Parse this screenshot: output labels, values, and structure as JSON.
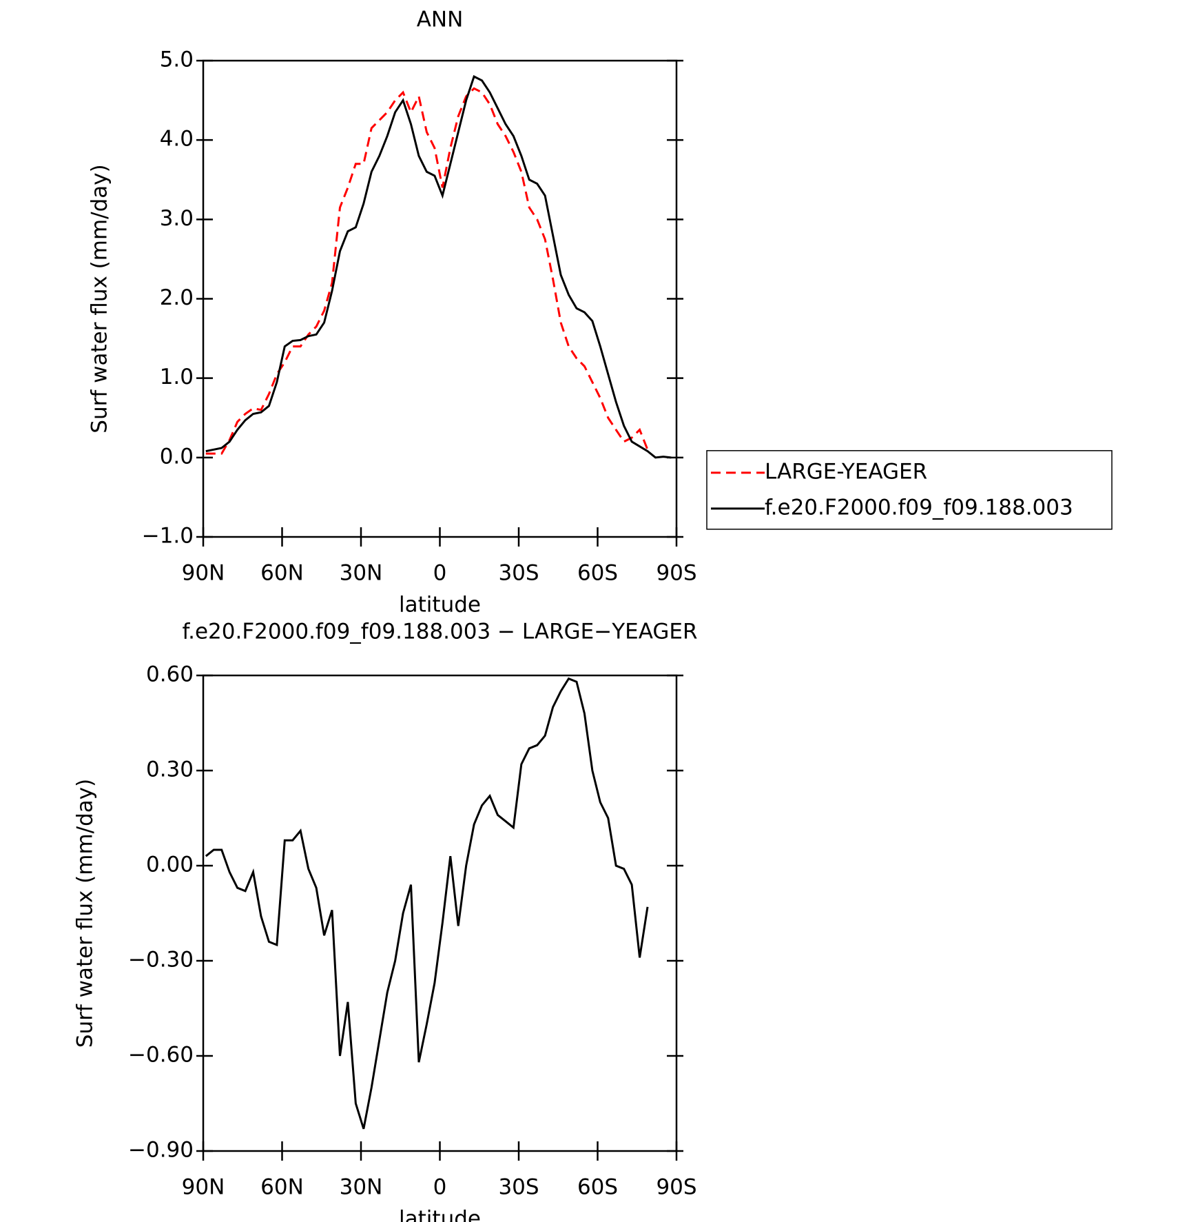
{
  "chart_data": [
    {
      "type": "line",
      "title": "ANN",
      "xlabel": "latitude",
      "ylabel": "Surf water flux (mm/day)",
      "x": [
        89,
        86,
        83,
        80,
        77,
        74,
        71,
        68,
        65,
        62,
        59,
        56,
        53,
        50,
        47,
        44,
        41,
        38,
        35,
        32,
        29,
        26,
        23,
        20,
        17,
        14,
        11,
        8,
        5,
        2,
        -1,
        -4,
        -7,
        -10,
        -13,
        -16,
        -19,
        -22,
        -25,
        -28,
        -31,
        -34,
        -37,
        -40,
        -43,
        -46,
        -49,
        -52,
        -55,
        -58,
        -61,
        -64,
        -67,
        -70,
        -73,
        -76,
        -79,
        -82,
        -85,
        -88
      ],
      "series": [
        {
          "name": "LARGE-YEAGER",
          "color": "#ff0000",
          "dash": "dashed",
          "values": [
            0.05,
            0.05,
            0.05,
            0.22,
            0.45,
            0.55,
            0.62,
            0.6,
            0.8,
            1.05,
            1.2,
            1.4,
            1.4,
            1.55,
            1.65,
            1.85,
            2.2,
            3.15,
            3.4,
            3.7,
            3.7,
            4.15,
            4.25,
            4.35,
            4.5,
            4.6,
            4.35,
            4.55,
            4.1,
            3.9,
            3.4,
            3.9,
            4.3,
            4.55,
            4.65,
            4.6,
            4.45,
            4.2,
            4.05,
            3.85,
            3.6,
            3.15,
            3.0,
            2.75,
            2.25,
            1.7,
            1.4,
            1.25,
            1.15,
            0.95,
            0.75,
            0.5,
            0.35,
            0.2,
            0.25,
            0.35,
            0.1,
            null,
            null,
            null
          ]
        },
        {
          "name": "f.e20.F2000.f09_f09.188.003",
          "color": "#000000",
          "dash": "solid",
          "values": [
            0.08,
            0.1,
            0.12,
            0.2,
            0.35,
            0.47,
            0.55,
            0.57,
            0.65,
            0.95,
            1.4,
            1.47,
            1.48,
            1.53,
            1.55,
            1.7,
            2.1,
            2.6,
            2.85,
            2.9,
            3.2,
            3.6,
            3.8,
            4.05,
            4.35,
            4.5,
            4.2,
            3.8,
            3.6,
            3.55,
            3.3,
            3.7,
            4.1,
            4.5,
            4.8,
            4.75,
            4.6,
            4.4,
            4.2,
            4.05,
            3.8,
            3.5,
            3.45,
            3.3,
            2.8,
            2.3,
            2.05,
            1.88,
            1.83,
            1.72,
            1.4,
            1.05,
            0.7,
            0.4,
            0.2,
            0.14,
            0.08,
            0.0,
            0.01,
            0.0
          ]
        }
      ],
      "xlim": [
        90,
        -90
      ],
      "xticks": [
        {
          "value": 90,
          "label": "90N"
        },
        {
          "value": 60,
          "label": "60N"
        },
        {
          "value": 30,
          "label": "30N"
        },
        0,
        {
          "value": -30,
          "label": "30S"
        },
        {
          "value": -60,
          "label": "60S"
        },
        {
          "value": -90,
          "label": "90S"
        }
      ],
      "ylim": [
        -1,
        5
      ],
      "yticks": [
        {
          "value": -1,
          "label": "−1.0"
        },
        {
          "value": 0,
          "label": "0.0"
        },
        {
          "value": 1,
          "label": "1.0"
        },
        {
          "value": 2,
          "label": "2.0"
        },
        {
          "value": 3,
          "label": "3.0"
        },
        {
          "value": 4,
          "label": "4.0"
        },
        {
          "value": 5,
          "label": "5.0"
        }
      ],
      "legend": "right"
    },
    {
      "type": "line",
      "title": "f.e20.F2000.f09_f09.188.003 − LARGE−YEAGER",
      "xlabel": "latitude",
      "ylabel": "Surf water flux (mm/day)",
      "x": [
        89,
        86,
        83,
        80,
        77,
        74,
        71,
        68,
        65,
        62,
        59,
        56,
        53,
        50,
        47,
        44,
        41,
        38,
        35,
        32,
        29,
        26,
        23,
        20,
        17,
        14,
        11,
        8,
        5,
        2,
        -1,
        -4,
        -7,
        -10,
        -13,
        -16,
        -19,
        -22,
        -25,
        -28,
        -31,
        -34,
        -37,
        -40,
        -43,
        -46,
        -49,
        -52,
        -55,
        -58,
        -61,
        -64,
        -67,
        -70,
        -73,
        -76,
        -79
      ],
      "series": [
        {
          "color": "#000000",
          "dash": "solid",
          "values": [
            0.03,
            0.05,
            0.05,
            -0.02,
            -0.07,
            -0.08,
            -0.02,
            -0.16,
            -0.24,
            -0.25,
            0.08,
            0.08,
            0.11,
            -0.01,
            -0.07,
            -0.22,
            -0.14,
            -0.6,
            -0.43,
            -0.75,
            -0.83,
            -0.7,
            -0.55,
            -0.4,
            -0.3,
            -0.15,
            -0.06,
            -0.62,
            -0.5,
            -0.37,
            -0.18,
            0.03,
            -0.19,
            0.0,
            0.13,
            0.19,
            0.22,
            0.16,
            0.14,
            0.12,
            0.32,
            0.37,
            0.38,
            0.41,
            0.5,
            0.55,
            0.59,
            0.58,
            0.48,
            0.3,
            0.2,
            0.15,
            0.0,
            -0.01,
            -0.06,
            -0.29,
            -0.13
          ]
        }
      ],
      "xlim": [
        90,
        -90
      ],
      "xticks": [
        {
          "value": 90,
          "label": "90N"
        },
        {
          "value": 60,
          "label": "60N"
        },
        {
          "value": 30,
          "label": "30N"
        },
        0,
        {
          "value": -30,
          "label": "30S"
        },
        {
          "value": -60,
          "label": "60S"
        },
        {
          "value": -90,
          "label": "90S"
        }
      ],
      "ylim": [
        -0.9,
        0.6
      ],
      "yticks": [
        {
          "value": -0.9,
          "label": "−0.90"
        },
        {
          "value": -0.6,
          "label": "−0.60"
        },
        {
          "value": -0.3,
          "label": "−0.30"
        },
        {
          "value": 0,
          "label": "0.00"
        },
        {
          "value": 0.3,
          "label": "0.30"
        },
        {
          "value": 0.6,
          "label": "0.60"
        }
      ]
    }
  ]
}
